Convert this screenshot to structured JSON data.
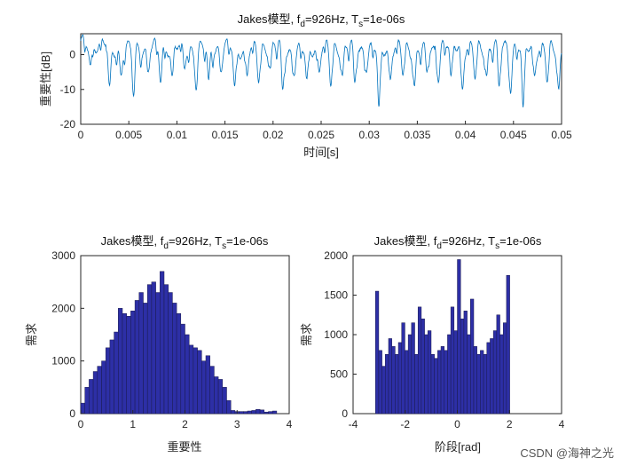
{
  "chart_data": [
    {
      "type": "line",
      "title_main": "Jakes模型, f",
      "title_sub1": "d",
      "title_mid": "=926Hz, T",
      "title_sub2": "s",
      "title_end": "=1e-06s",
      "xlabel": "时间[s]",
      "ylabel": "重要性[dB]",
      "xlim": [
        0,
        0.05
      ],
      "ylim": [
        -20,
        6
      ],
      "xticks": [
        "0",
        "0.005",
        "0.01",
        "0.015",
        "0.02",
        "0.025",
        "0.03",
        "0.035",
        "0.04",
        "0.045",
        "0.05"
      ],
      "yticks": [
        "0",
        "-10",
        "-20"
      ],
      "series_color": "#0072BD",
      "description_of_series": "Rayleigh fading envelope in dB, mostly between 0 and 5 dB with deep fades",
      "peaks_db": [
        5,
        3.5,
        4,
        4.2,
        3.8,
        4,
        3.5,
        4.5,
        3,
        4,
        4.2,
        3.6,
        4,
        3.5,
        4.8,
        4,
        4.5,
        4.2,
        3.8,
        4
      ],
      "fade_times": [
        0.001,
        0.003,
        0.0042,
        0.0055,
        0.007,
        0.0083,
        0.0095,
        0.0108,
        0.012,
        0.0133,
        0.0146,
        0.016,
        0.0173,
        0.0185,
        0.0197,
        0.021,
        0.0222,
        0.0235,
        0.0248,
        0.026,
        0.0272,
        0.0285,
        0.0297,
        0.031,
        0.0322,
        0.0335,
        0.0347,
        0.036,
        0.0372,
        0.0385,
        0.0397,
        0.041,
        0.0422,
        0.0435,
        0.0447,
        0.046,
        0.0472,
        0.0485,
        0.0497
      ],
      "fade_depths_db": [
        -3,
        -9,
        -6,
        -12,
        -5,
        -8,
        -6,
        -4,
        -10,
        -7,
        -5,
        -9,
        -6,
        -8,
        -4,
        -10,
        -6,
        -7,
        -5,
        -9,
        -6,
        -8,
        -5,
        -15,
        -7,
        -6,
        -9,
        -5,
        -8,
        -6,
        -10,
        -7,
        -6,
        -9,
        -11,
        -15,
        -6,
        -8,
        -10
      ]
    },
    {
      "type": "bar",
      "title_main": "Jakes模型, f",
      "title_sub1": "d",
      "title_mid": "=926Hz, T",
      "title_sub2": "s",
      "title_end": "=1e-06s",
      "xlabel": "重要性",
      "ylabel": "需求",
      "xlim": [
        0,
        4
      ],
      "ylim": [
        0,
        3000
      ],
      "xticks": [
        "0",
        "1",
        "2",
        "3",
        "4"
      ],
      "yticks": [
        "0",
        "1000",
        "2000",
        "3000"
      ],
      "bar_color": "#2D2FA6",
      "bin_start": 0,
      "bin_width": 0.08,
      "values": [
        200,
        500,
        650,
        800,
        900,
        1000,
        1250,
        1400,
        1550,
        2000,
        1900,
        1850,
        1950,
        2150,
        2300,
        2100,
        2450,
        2500,
        2300,
        2700,
        2450,
        2300,
        2100,
        1900,
        1700,
        1500,
        1300,
        1250,
        1200,
        1000,
        1100,
        900,
        700,
        650,
        500,
        250,
        60,
        40,
        40,
        40,
        50,
        60,
        80,
        70,
        30,
        40,
        50,
        0,
        0,
        0
      ]
    },
    {
      "type": "bar",
      "title_main": "Jakes模型, f",
      "title_sub1": "d",
      "title_mid": "=926Hz, T",
      "title_sub2": "s",
      "title_end": "=1e-06s",
      "xlabel": "阶段[rad]",
      "ylabel": "需求",
      "xlim": [
        -4,
        4
      ],
      "ylim": [
        0,
        2000
      ],
      "xticks": [
        "-4",
        "-2",
        "0",
        "2",
        "4"
      ],
      "yticks": [
        "0",
        "500",
        "1000",
        "1500",
        "2000"
      ],
      "bar_color": "#2D2FA6",
      "bin_start": -3.1416,
      "bin_width": 0.1257,
      "values": [
        1550,
        800,
        600,
        750,
        950,
        850,
        750,
        900,
        1150,
        800,
        1000,
        1150,
        750,
        1350,
        1200,
        1000,
        1050,
        750,
        700,
        800,
        850,
        800,
        1000,
        1350,
        1050,
        1950,
        1200,
        1300,
        1000,
        1450,
        850,
        750,
        800,
        750,
        900,
        950,
        1050,
        1250,
        1000,
        1150,
        1750
      ]
    }
  ],
  "watermark": "CSDN @海神之光"
}
